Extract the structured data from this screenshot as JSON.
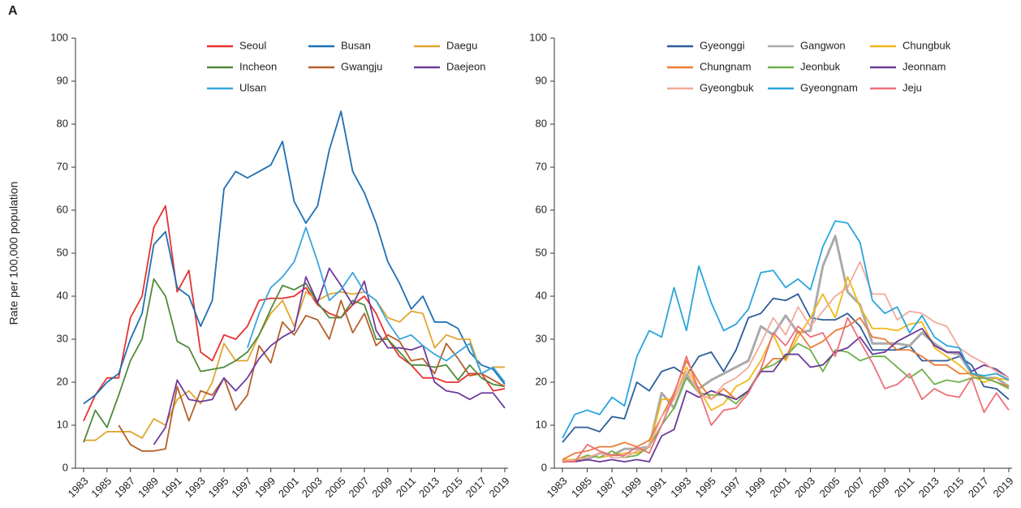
{
  "label": "A",
  "chart_data": [
    {
      "type": "line",
      "ylabel": "Rate per 100,000 population",
      "x": [
        1983,
        1984,
        1985,
        1986,
        1987,
        1988,
        1989,
        1990,
        1991,
        1992,
        1993,
        1994,
        1995,
        1996,
        1997,
        1998,
        1999,
        2000,
        2001,
        2002,
        2003,
        2004,
        2005,
        2006,
        2007,
        2008,
        2009,
        2010,
        2011,
        2012,
        2013,
        2014,
        2015,
        2016,
        2017,
        2018,
        2019
      ],
      "xlim": [
        1983,
        2019
      ],
      "xticks": [
        1983,
        1985,
        1987,
        1989,
        1991,
        1993,
        1995,
        1997,
        1999,
        2001,
        2003,
        2005,
        2007,
        2009,
        2011,
        2013,
        2015,
        2017,
        2019
      ],
      "ylim": [
        0,
        100
      ],
      "yticks": [
        0,
        10,
        20,
        30,
        40,
        50,
        60,
        70,
        80,
        90,
        100
      ],
      "grid": false,
      "series": [
        {
          "name": "Seoul",
          "color": "#e8312f",
          "values": [
            11,
            17,
            21,
            21,
            35,
            40,
            56,
            61,
            41,
            46,
            27,
            25,
            31,
            30,
            33,
            39,
            39.5,
            39.5,
            40,
            42,
            38,
            36,
            35,
            38,
            40,
            36,
            30,
            26,
            24,
            21,
            21,
            20,
            20,
            22,
            22,
            18,
            18.5
          ]
        },
        {
          "name": "Busan",
          "color": "#1f6fb2",
          "values": [
            15,
            17,
            20,
            22,
            30,
            36,
            52,
            55,
            42,
            40,
            33,
            39,
            65,
            69,
            67.5,
            69,
            70.5,
            76,
            62,
            57,
            61,
            74,
            83,
            69,
            64,
            57,
            48,
            43,
            37,
            40,
            34,
            34,
            32.5,
            27,
            24,
            23,
            19.5
          ]
        },
        {
          "name": "Daegu",
          "color": "#e0a632",
          "values": [
            6.5,
            6.5,
            8.5,
            8.5,
            8.5,
            7,
            11.5,
            10,
            16,
            18,
            15,
            20,
            29,
            25,
            25,
            31,
            36,
            39,
            33,
            41,
            39,
            40.5,
            41,
            40.5,
            41,
            39,
            35,
            34,
            36.5,
            36,
            28,
            31,
            30,
            30,
            22,
            23.5,
            23.5
          ]
        },
        {
          "name": "Incheon",
          "color": "#4f8a3b",
          "values": [
            6,
            13.5,
            9.5,
            17,
            25,
            30,
            44,
            40,
            29.5,
            28,
            22.5,
            23,
            23.5,
            25,
            27,
            31,
            37,
            42.5,
            41.5,
            43,
            38.5,
            35,
            35,
            39,
            38,
            30,
            30,
            27,
            24,
            24,
            23.5,
            24,
            20.5,
            24,
            21,
            19.5,
            19
          ]
        },
        {
          "name": "Gwangju",
          "color": "#b5602a",
          "values": [
            null,
            null,
            null,
            10,
            5.5,
            4,
            4,
            4.5,
            19,
            11,
            18,
            17,
            21,
            13.5,
            17,
            28.5,
            24.5,
            34,
            31,
            35.5,
            34.5,
            30,
            39,
            31.5,
            36,
            28.5,
            31,
            29.5,
            25,
            25.5,
            22,
            29,
            25.5,
            21.5,
            22,
            20.5,
            19
          ]
        },
        {
          "name": "Daejeon",
          "color": "#6e3b9e",
          "values": [
            null,
            null,
            null,
            null,
            null,
            null,
            5.5,
            9.5,
            20.5,
            16,
            15.5,
            16,
            21,
            18,
            21,
            25.5,
            28.5,
            30.5,
            32,
            44.5,
            38.5,
            46.5,
            42.5,
            38,
            43.5,
            32,
            28,
            28,
            27.5,
            28.5,
            20,
            18,
            17.5,
            16,
            17.5,
            17.5,
            14
          ]
        },
        {
          "name": "Ulsan",
          "color": "#3aa6dc",
          "values": [
            null,
            null,
            null,
            null,
            null,
            null,
            null,
            null,
            null,
            null,
            null,
            null,
            null,
            null,
            28,
            36,
            42,
            44.5,
            48,
            56,
            48,
            39,
            41.5,
            45.5,
            41,
            39,
            34,
            30,
            31,
            28.5,
            26.5,
            25,
            27,
            29,
            22,
            23.5,
            20
          ]
        }
      ]
    },
    {
      "type": "line",
      "x": [
        1983,
        1984,
        1985,
        1986,
        1987,
        1988,
        1989,
        1990,
        1991,
        1992,
        1993,
        1994,
        1995,
        1996,
        1997,
        1998,
        1999,
        2000,
        2001,
        2002,
        2003,
        2004,
        2005,
        2006,
        2007,
        2008,
        2009,
        2010,
        2011,
        2012,
        2013,
        2014,
        2015,
        2016,
        2017,
        2018,
        2019
      ],
      "xlim": [
        1983,
        2019
      ],
      "xticks": [
        1983,
        1985,
        1987,
        1989,
        1991,
        1993,
        1995,
        1997,
        1999,
        2001,
        2003,
        2005,
        2007,
        2009,
        2011,
        2013,
        2015,
        2017,
        2019
      ],
      "ylim": [
        0,
        100
      ],
      "yticks": [
        0,
        10,
        20,
        30,
        40,
        50,
        60,
        70,
        80,
        90,
        100
      ],
      "grid": false,
      "series": [
        {
          "name": "Gyeonggi",
          "color": "#2c5d9a",
          "values": [
            6,
            9.5,
            9.5,
            8.5,
            12,
            11.5,
            20,
            18,
            22.5,
            23.5,
            21.5,
            26,
            27,
            22.5,
            27.5,
            35,
            36,
            39.5,
            39,
            40.5,
            35,
            34.5,
            34.5,
            36,
            33,
            27.5,
            27.5,
            27.5,
            28.5,
            25,
            25,
            25,
            26,
            24,
            19,
            18.5,
            16
          ]
        },
        {
          "name": "Gangwon",
          "color": "#aaaaaa",
          "values": [
            1.5,
            2,
            2,
            3.5,
            3,
            4.5,
            4.5,
            5,
            17.5,
            14,
            21.5,
            18.5,
            20.5,
            22,
            23.5,
            25,
            33,
            31,
            35.5,
            31.5,
            32,
            47,
            54,
            41,
            38,
            29,
            29,
            29,
            28.5,
            31.5,
            29,
            27,
            26.5,
            22,
            21,
            21,
            19
          ]
        },
        {
          "name": "Chungbuk",
          "color": "#f1b81a",
          "values": [
            2,
            2,
            3,
            2.5,
            3,
            3.5,
            3.5,
            5,
            16,
            16,
            23.5,
            18.5,
            13.5,
            15,
            19,
            20.5,
            25,
            31,
            25,
            30.5,
            35,
            40.5,
            35,
            44.5,
            37.5,
            32.5,
            32.5,
            32,
            33.5,
            34,
            28,
            26,
            24,
            21.5,
            20,
            21,
            20.5
          ]
        },
        {
          "name": "Chungnam",
          "color": "#ec7b35",
          "values": [
            2,
            3.5,
            4,
            5,
            5,
            6,
            5,
            6.5,
            12,
            17.5,
            25,
            20,
            16,
            18.5,
            16,
            18,
            22.5,
            25.5,
            25.5,
            32,
            28,
            29.5,
            32,
            33,
            35,
            30.5,
            30,
            27.5,
            27.5,
            26,
            24,
            24,
            22,
            22,
            21,
            20,
            19
          ]
        },
        {
          "name": "Jeonbuk",
          "color": "#6fb04a",
          "values": [
            1.5,
            1.5,
            3,
            2.5,
            4,
            2.5,
            3,
            5,
            10,
            14,
            21,
            17.5,
            17,
            17,
            15,
            18,
            23,
            24,
            26,
            29,
            27.5,
            22.5,
            27.5,
            27,
            25,
            26,
            26,
            23.5,
            21,
            23,
            19.5,
            20.5,
            20,
            21,
            21,
            20,
            18.5
          ]
        },
        {
          "name": "Jeonnam",
          "color": "#6a3a98",
          "values": [
            1.5,
            1.5,
            2,
            1.5,
            2,
            1.5,
            2,
            1.5,
            7.5,
            9,
            18,
            16.5,
            18,
            17,
            16,
            18,
            22.5,
            22.5,
            26.5,
            26.5,
            23.5,
            24,
            27,
            28,
            30.5,
            26.5,
            27,
            29.5,
            31,
            32.5,
            28.5,
            27,
            27,
            22.5,
            24,
            23,
            21
          ]
        },
        {
          "name": "Gyeongbuk",
          "color": "#f0aa9b",
          "values": [
            1.5,
            2,
            2.5,
            3.5,
            2.5,
            2.5,
            4,
            5,
            12,
            16,
            22.5,
            17.5,
            16,
            19.5,
            21,
            23.5,
            29,
            35,
            31,
            37.5,
            33,
            36.5,
            40,
            42,
            48,
            40.5,
            40.5,
            34.5,
            36.5,
            36,
            34,
            33,
            28,
            26,
            24.5,
            22.5,
            21
          ]
        },
        {
          "name": "Gyeongnam",
          "color": "#2aa5dc",
          "values": [
            7,
            12.5,
            13.5,
            12.5,
            16.5,
            14.5,
            26,
            32,
            30.5,
            42,
            32,
            47,
            38.5,
            32,
            33.5,
            37,
            45.5,
            46,
            42,
            44,
            41.5,
            51.5,
            57.5,
            57,
            52.5,
            39,
            36,
            37.5,
            31.5,
            35.5,
            30.5,
            28.5,
            28,
            22,
            21.5,
            22,
            20.5
          ]
        },
        {
          "name": "Jeju",
          "color": "#ec6f7a",
          "values": [
            1.5,
            1.5,
            5.5,
            4,
            3,
            3,
            5,
            3.5,
            10,
            17,
            26,
            18,
            10,
            13.5,
            14,
            17.5,
            23,
            31.5,
            28.5,
            33,
            30.5,
            31.5,
            26,
            35,
            29.5,
            24.5,
            18.5,
            19.5,
            22,
            16,
            18.5,
            17,
            16.5,
            21,
            13,
            17.5,
            13.5
          ]
        }
      ]
    }
  ]
}
